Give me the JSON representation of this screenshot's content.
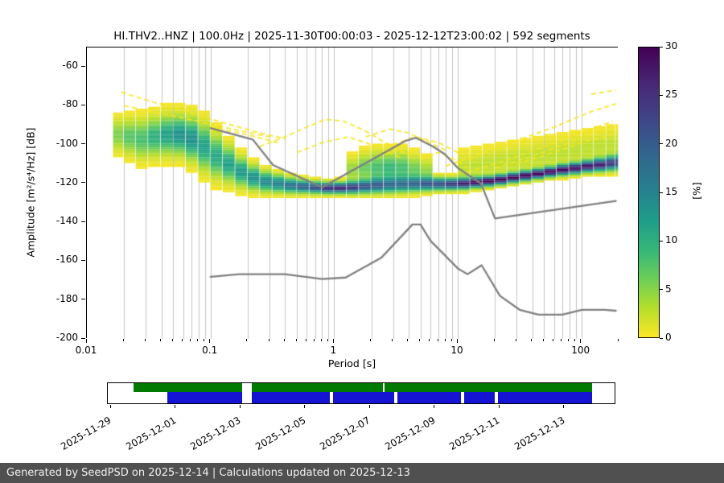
{
  "chart_data": {
    "type": "heatmap",
    "title": "HI.THV2..HNZ | 100.0Hz | 2025-11-30T00:00:03 - 2025-12-12T23:00:02 | 592 segments",
    "xlabel": "Period [s]",
    "ylabel": "Amplitude [m²/s⁴/Hz] [dB]",
    "xscale": "log",
    "xlim": [
      0.01,
      200
    ],
    "ylim": [
      -200,
      -50
    ],
    "x_ticks": {
      "major": [
        0.01,
        0.1,
        1,
        10,
        100
      ],
      "labels": [
        "0.01",
        "0.1",
        "1",
        "10",
        "100"
      ]
    },
    "y_ticks": [
      -200,
      -180,
      -160,
      -140,
      -120,
      -100,
      -80,
      -60
    ],
    "grid": "vertical-log-minor-and-major",
    "colorbar": {
      "label": "[%]",
      "min": 0,
      "max": 30,
      "ticks": [
        0,
        5,
        10,
        15,
        20,
        25,
        30
      ],
      "colormap": "viridis_r"
    },
    "density": {
      "comment": "PPSD probability cloud: per period column, gaussian components [center_dB, sigma_dB, peak_percent]",
      "periods": [
        0.018,
        0.022,
        0.028,
        0.035,
        0.045,
        0.056,
        0.071,
        0.089,
        0.112,
        0.141,
        0.178,
        0.224,
        0.282,
        0.355,
        0.447,
        0.562,
        0.708,
        0.891,
        1.122,
        1.413,
        1.778,
        2.239,
        2.818,
        3.548,
        4.467,
        5.623,
        7.079,
        8.913,
        11.22,
        14.13,
        17.78,
        22.39,
        28.18,
        35.48,
        44.67,
        56.23,
        70.79,
        89.13,
        112.2,
        141.3,
        177.8,
        199.5
      ],
      "components": [
        [
          [
            -95,
            5,
            6
          ]
        ],
        [
          [
            -96,
            5.5,
            8
          ]
        ],
        [
          [
            -97,
            6,
            9
          ]
        ],
        [
          [
            -96,
            6,
            11
          ]
        ],
        [
          [
            -95,
            6,
            13
          ]
        ],
        [
          [
            -95,
            6,
            15
          ]
        ],
        [
          [
            -97,
            6.5,
            15
          ]
        ],
        [
          [
            -101,
            7,
            13
          ]
        ],
        [
          [
            -106,
            6.5,
            12
          ]
        ],
        [
          [
            -110,
            5.5,
            13
          ]
        ],
        [
          [
            -114,
            4.5,
            14
          ]
        ],
        [
          [
            -117,
            3.8,
            15
          ]
        ],
        [
          [
            -119,
            3.2,
            16
          ]
        ],
        [
          [
            -120,
            2.8,
            17
          ]
        ],
        [
          [
            -121,
            2.4,
            19
          ]
        ],
        [
          [
            -121.5,
            2.1,
            21
          ]
        ],
        [
          [
            -122,
            1.9,
            23
          ]
        ],
        [
          [
            -122.3,
            1.8,
            26
          ]
        ],
        [
          [
            -122.3,
            1.8,
            27
          ]
        ],
        [
          [
            -122,
            2,
            25
          ],
          [
            -113,
            4,
            5
          ]
        ],
        [
          [
            -121.5,
            2.2,
            22
          ],
          [
            -112,
            4.5,
            7
          ]
        ],
        [
          [
            -121,
            2.4,
            20
          ],
          [
            -112,
            5,
            9
          ]
        ],
        [
          [
            -120.8,
            2.5,
            18
          ],
          [
            -112,
            5,
            10
          ]
        ],
        [
          [
            -120.5,
            2.5,
            18
          ],
          [
            -112,
            5,
            9
          ]
        ],
        [
          [
            -120.3,
            2.4,
            19
          ],
          [
            -113,
            4.5,
            7
          ]
        ],
        [
          [
            -120.2,
            2.2,
            21
          ],
          [
            -114,
            4,
            5
          ]
        ],
        [
          [
            -120.2,
            2,
            23
          ]
        ],
        [
          [
            -120.2,
            1.9,
            25
          ]
        ],
        [
          [
            -120,
            1.8,
            27
          ],
          [
            -112,
            5,
            3
          ]
        ],
        [
          [
            -119.4,
            1.7,
            29
          ],
          [
            -111,
            5,
            3
          ]
        ],
        [
          [
            -118.8,
            1.6,
            30
          ],
          [
            -110,
            5,
            3
          ]
        ],
        [
          [
            -118,
            1.6,
            30
          ],
          [
            -109,
            5,
            3
          ]
        ],
        [
          [
            -117,
            1.6,
            30
          ],
          [
            -108,
            5,
            3
          ]
        ],
        [
          [
            -116,
            1.6,
            30
          ],
          [
            -107,
            5,
            3
          ]
        ],
        [
          [
            -115,
            1.6,
            30
          ],
          [
            -106,
            5,
            3
          ]
        ],
        [
          [
            -114,
            1.6,
            30
          ],
          [
            -105,
            5,
            3
          ]
        ],
        [
          [
            -113,
            1.7,
            30
          ],
          [
            -104,
            5,
            3
          ]
        ],
        [
          [
            -112.2,
            1.8,
            29
          ],
          [
            -103,
            5,
            3
          ]
        ],
        [
          [
            -111.2,
            1.9,
            28
          ],
          [
            -102,
            5,
            3
          ]
        ],
        [
          [
            -110.4,
            2.1,
            27
          ],
          [
            -101,
            5,
            3
          ]
        ],
        [
          [
            -109.6,
            2.3,
            25
          ],
          [
            -100,
            5,
            3
          ]
        ],
        [
          [
            -109.2,
            2.4,
            24
          ],
          [
            -100,
            5,
            3
          ]
        ]
      ]
    },
    "noise_models": [
      {
        "name": "NHNM",
        "x": [
          0.1,
          0.22,
          0.32,
          0.8,
          3.8,
          4.6,
          6.3,
          7.9,
          10,
          15.4,
          20,
          190
        ],
        "y": [
          -91.5,
          -97.4,
          -110.5,
          -122,
          -98,
          -96.5,
          -101,
          -105,
          -112,
          -120,
          -138,
          -129
        ]
      },
      {
        "name": "NLNM",
        "x": [
          0.1,
          0.17,
          0.4,
          0.8,
          1.24,
          2.4,
          4.3,
          5,
          6,
          10,
          12,
          15.6,
          21.9,
          31.6,
          45,
          70,
          101,
          154,
          190
        ],
        "y": [
          -168,
          -166.7,
          -166.7,
          -169.2,
          -168.4,
          -158.3,
          -141.1,
          -141.1,
          -149.4,
          -163.7,
          -166.7,
          -162.1,
          -177.8,
          -185,
          -187.5,
          -187.5,
          -185,
          -185,
          -185.5
        ]
      }
    ],
    "outlier_traces": [
      {
        "x": [
          0.019,
          0.03,
          0.05,
          0.09,
          0.15,
          0.25,
          0.4
        ],
        "y": [
          -73,
          -77,
          -81,
          -86,
          -90,
          -94,
          -97
        ]
      },
      {
        "x": [
          0.02,
          0.04,
          0.08,
          0.15,
          0.3
        ],
        "y": [
          -80,
          -84,
          -88,
          -92,
          -96
        ]
      },
      {
        "x": [
          0.25,
          0.4,
          0.6,
          0.85,
          1.2,
          1.8,
          2.6,
          4
        ],
        "y": [
          -101,
          -96,
          -91,
          -87,
          -88,
          -93,
          -99,
          -105
        ]
      },
      {
        "x": [
          0.5,
          0.8,
          1.3,
          2.2,
          3.5
        ],
        "y": [
          -104,
          -99,
          -96,
          -101,
          -107
        ]
      },
      {
        "x": [
          1.8,
          2.8,
          4,
          5.5,
          8
        ],
        "y": [
          -96,
          -92,
          -94,
          -98,
          -103
        ]
      },
      {
        "x": [
          3,
          4.5,
          7,
          10,
          14
        ],
        "y": [
          -100,
          -96,
          -99,
          -104,
          -109
        ]
      },
      {
        "x": [
          8,
          15,
          30,
          60,
          120,
          190
        ],
        "y": [
          -111,
          -105,
          -98,
          -91,
          -83,
          -79
        ]
      },
      {
        "x": [
          12,
          25,
          50,
          100,
          180
        ],
        "y": [
          -114,
          -108,
          -101,
          -94,
          -88
        ]
      },
      {
        "x": [
          20,
          40,
          80,
          160,
          195
        ],
        "y": [
          -112,
          -106,
          -99,
          -92,
          -90
        ]
      },
      {
        "x": [
          120,
          190
        ],
        "y": [
          -74,
          -72
        ]
      },
      {
        "x": [
          0.1,
          0.2,
          0.35
        ],
        "y": [
          -91,
          -95,
          -99
        ]
      },
      {
        "x": [
          2.2,
          3.2,
          4.2
        ],
        "y": [
          -106,
          -103,
          -105
        ]
      },
      {
        "x": [
          5,
          7,
          9,
          12
        ],
        "y": [
          -107,
          -104,
          -107,
          -112
        ]
      },
      {
        "x": [
          30,
          60,
          110,
          180
        ],
        "y": [
          -110,
          -104,
          -98,
          -95
        ]
      }
    ],
    "noise_model_color": "#808080",
    "outlier_color": "rgba(247,229,32,0.85)"
  },
  "timeline": {
    "axis_days": [
      -0.1,
      15.6
    ],
    "ticks": [
      {
        "day": 0,
        "label": "2025-11-29"
      },
      {
        "day": 2,
        "label": "2025-12-01"
      },
      {
        "day": 4,
        "label": "2025-12-03"
      },
      {
        "day": 6,
        "label": "2025-12-05"
      },
      {
        "day": 8,
        "label": "2025-12-07"
      },
      {
        "day": 10,
        "label": "2025-12-09"
      },
      {
        "day": 12,
        "label": "2025-12-11"
      },
      {
        "day": 14,
        "label": "2025-12-13"
      }
    ],
    "green_color": "#007a00",
    "blue_color": "#1414d2",
    "green_segments": [
      [
        0.7,
        4.05
      ],
      [
        4.35,
        8.4
      ],
      [
        8.45,
        14.85
      ]
    ],
    "blue_segments": [
      [
        1.75,
        4.05
      ],
      [
        4.35,
        6.75
      ],
      [
        6.85,
        8.75
      ],
      [
        8.85,
        10.8
      ],
      [
        10.9,
        11.85
      ],
      [
        11.95,
        14.85
      ]
    ]
  },
  "footer": {
    "text": "Generated by SeedPSD on 2025-12-14 | Calculations updated on 2025-12-13"
  }
}
